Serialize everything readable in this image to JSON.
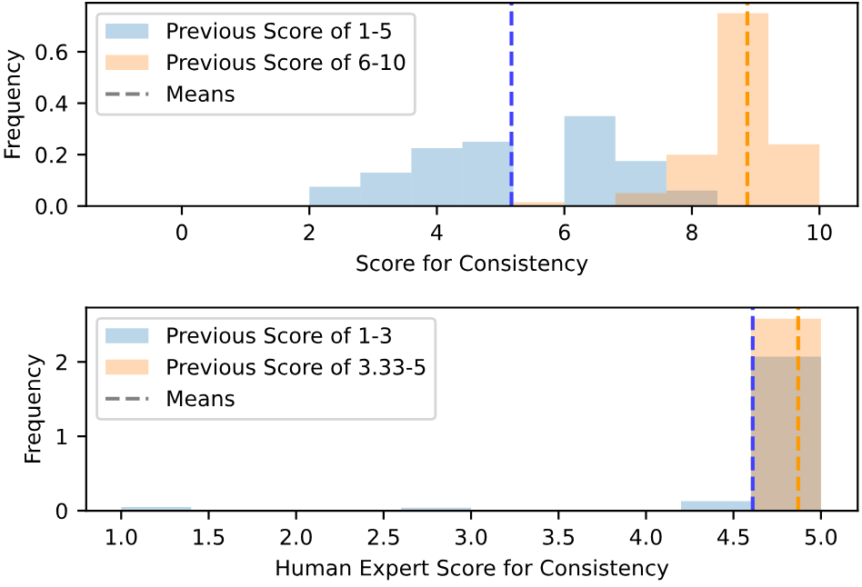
{
  "chart_data": [
    {
      "type": "histogram",
      "xlabel": "Score for Consistency",
      "ylabel": "Frequency",
      "bins": [
        2,
        2.8,
        3.6,
        4.4,
        5.2,
        6.0,
        6.8,
        7.6,
        8.4,
        9.2,
        10
      ],
      "series": [
        {
          "name": "Previous Score of 1-5",
          "color": "#1f77b4",
          "values": [
            0.075,
            0.13,
            0.225,
            0.25,
            0,
            0.35,
            0.175,
            0.06,
            0,
            0
          ]
        },
        {
          "name": "Previous Score of 6-10",
          "color": "#ff7f0e",
          "values": [
            0,
            0,
            0,
            0,
            0.015,
            0,
            0.05,
            0.2,
            0.75,
            0.24
          ]
        }
      ],
      "annotations": [
        "Means"
      ],
      "ref_lines": [
        {
          "axis": "x",
          "value": 5.17,
          "color": "#4040ff",
          "line_style": "dashed"
        },
        {
          "axis": "x",
          "value": 8.87,
          "color": "#ff9900",
          "line_style": "dashed"
        }
      ],
      "xlim": [
        -1.5,
        10.6
      ],
      "ylim": [
        0,
        0.79
      ],
      "xticks": [
        0,
        2,
        4,
        6,
        8,
        10
      ],
      "yticks": [
        {
          "value": 0,
          "label": "0.0"
        },
        {
          "value": 0.2,
          "label": "0.2"
        },
        {
          "value": 0.4,
          "label": "0.4"
        },
        {
          "value": 0.6,
          "label": "0.6"
        }
      ],
      "legend": "top left",
      "grid": false
    },
    {
      "type": "histogram",
      "xlabel": "Human Expert Score for Consistency",
      "ylabel": "Frequency",
      "bins": [
        1.0,
        1.4,
        1.8,
        2.2,
        2.6,
        3.0,
        3.4,
        3.8,
        4.2,
        4.6,
        5.0
      ],
      "series": [
        {
          "name": "Previous Score of 1-3",
          "color": "#1f77b4",
          "values": [
            0.05,
            null,
            0,
            0,
            0.04,
            0,
            0,
            0.01,
            0.13,
            2.07
          ]
        },
        {
          "name": "Previous Score of 3.33-5",
          "color": "#ff7f0e",
          "values": [
            0,
            0,
            0,
            0,
            0,
            0,
            0,
            0,
            0,
            2.58
          ]
        }
      ],
      "annotations": [
        "Means"
      ],
      "ref_lines": [
        {
          "axis": "x",
          "value": 4.61,
          "color": "#4040ff",
          "line_style": "dashed"
        },
        {
          "axis": "x",
          "value": 4.87,
          "color": "#ff9900",
          "line_style": "dashed"
        }
      ],
      "xlim": [
        0.8,
        5.21
      ],
      "ylim": [
        0,
        2.73
      ],
      "xticks": [
        {
          "value": 1.0,
          "label": "1.0"
        },
        {
          "value": 1.5,
          "label": "1.5"
        },
        {
          "value": 2.0,
          "label": "2.0"
        },
        {
          "value": 2.5,
          "label": "2.5"
        },
        {
          "value": 3.0,
          "label": "3.0"
        },
        {
          "value": 3.5,
          "label": "3.5"
        },
        {
          "value": 4.0,
          "label": "4.0"
        },
        {
          "value": 4.5,
          "label": "4.5"
        },
        {
          "value": 5.0,
          "label": "5.0"
        }
      ],
      "yticks": [
        0,
        1,
        2
      ],
      "legend": "top left",
      "grid": false
    }
  ]
}
